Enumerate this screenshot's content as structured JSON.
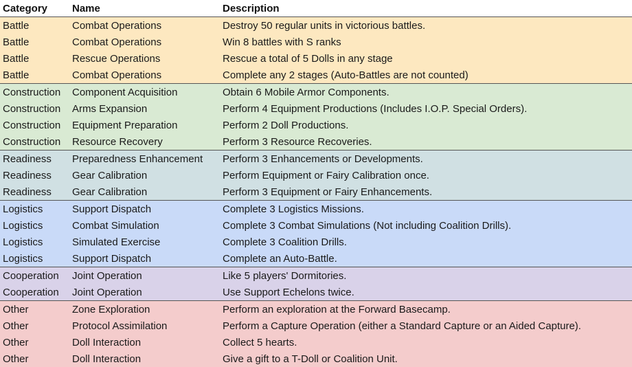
{
  "headers": [
    "Category",
    "Name",
    "Description"
  ],
  "rows": [
    {
      "group": "battle",
      "category": "Battle",
      "name": "Combat Operations",
      "description": "Destroy 50 regular units in victorious battles."
    },
    {
      "group": "battle",
      "category": "Battle",
      "name": "Combat Operations",
      "description": "Win 8 battles with S ranks"
    },
    {
      "group": "battle",
      "category": "Battle",
      "name": "Rescue Operations",
      "description": "Rescue a total of 5 Dolls in any stage"
    },
    {
      "group": "battle",
      "category": "Battle",
      "name": "Combat Operations",
      "description": "Complete any 2 stages (Auto-Battles are not counted)"
    },
    {
      "group": "construction",
      "category": "Construction",
      "name": "Component Acquisition",
      "description": "Obtain 6 Mobile Armor Components."
    },
    {
      "group": "construction",
      "category": "Construction",
      "name": "Arms Expansion",
      "description": "Perform 4 Equipment Productions (Includes I.O.P. Special Orders)."
    },
    {
      "group": "construction",
      "category": "Construction",
      "name": "Equipment Preparation",
      "description": "Perform 2 Doll Productions."
    },
    {
      "group": "construction",
      "category": "Construction",
      "name": "Resource Recovery",
      "description": "Perform 3 Resource Recoveries."
    },
    {
      "group": "readiness",
      "category": "Readiness",
      "name": "Preparedness Enhancement",
      "description": "Perform 3 Enhancements or Developments."
    },
    {
      "group": "readiness",
      "category": "Readiness",
      "name": "Gear Calibration",
      "description": "Perform Equipment or Fairy Calibration once."
    },
    {
      "group": "readiness",
      "category": "Readiness",
      "name": "Gear Calibration",
      "description": "Perform 3 Equipment or Fairy Enhancements."
    },
    {
      "group": "logistics",
      "category": "Logistics",
      "name": "Support Dispatch",
      "description": "Complete 3 Logistics Missions."
    },
    {
      "group": "logistics",
      "category": "Logistics",
      "name": "Combat Simulation",
      "description": "Complete 3 Combat Simulations (Not including Coalition Drills)."
    },
    {
      "group": "logistics",
      "category": "Logistics",
      "name": "Simulated Exercise",
      "description": "Complete 3 Coalition Drills."
    },
    {
      "group": "logistics",
      "category": "Logistics",
      "name": "Support Dispatch",
      "description": "Complete an Auto-Battle."
    },
    {
      "group": "cooperation",
      "category": "Cooperation",
      "name": "Joint Operation",
      "description": "Like 5 players' Dormitories."
    },
    {
      "group": "cooperation",
      "category": "Cooperation",
      "name": "Joint Operation",
      "description": "Use Support Echelons twice."
    },
    {
      "group": "other",
      "category": "Other",
      "name": "Zone Exploration",
      "description": "Perform an exploration at the Forward Basecamp."
    },
    {
      "group": "other",
      "category": "Other",
      "name": "Protocol Assimilation",
      "description": "Perform a Capture Operation (either a Standard Capture or an Aided Capture)."
    },
    {
      "group": "other",
      "category": "Other",
      "name": "Doll Interaction",
      "description": "Collect 5 hearts."
    },
    {
      "group": "other",
      "category": "Other",
      "name": "Doll Interaction",
      "description": "Give a gift to a T-Doll or Coalition Unit."
    }
  ],
  "colors": {
    "battle": "#fde8c0",
    "construction": "#d9ead3",
    "readiness": "#d0e0e3",
    "logistics": "#c9daf8",
    "cooperation": "#d9d2e9",
    "other": "#f4cccc"
  }
}
